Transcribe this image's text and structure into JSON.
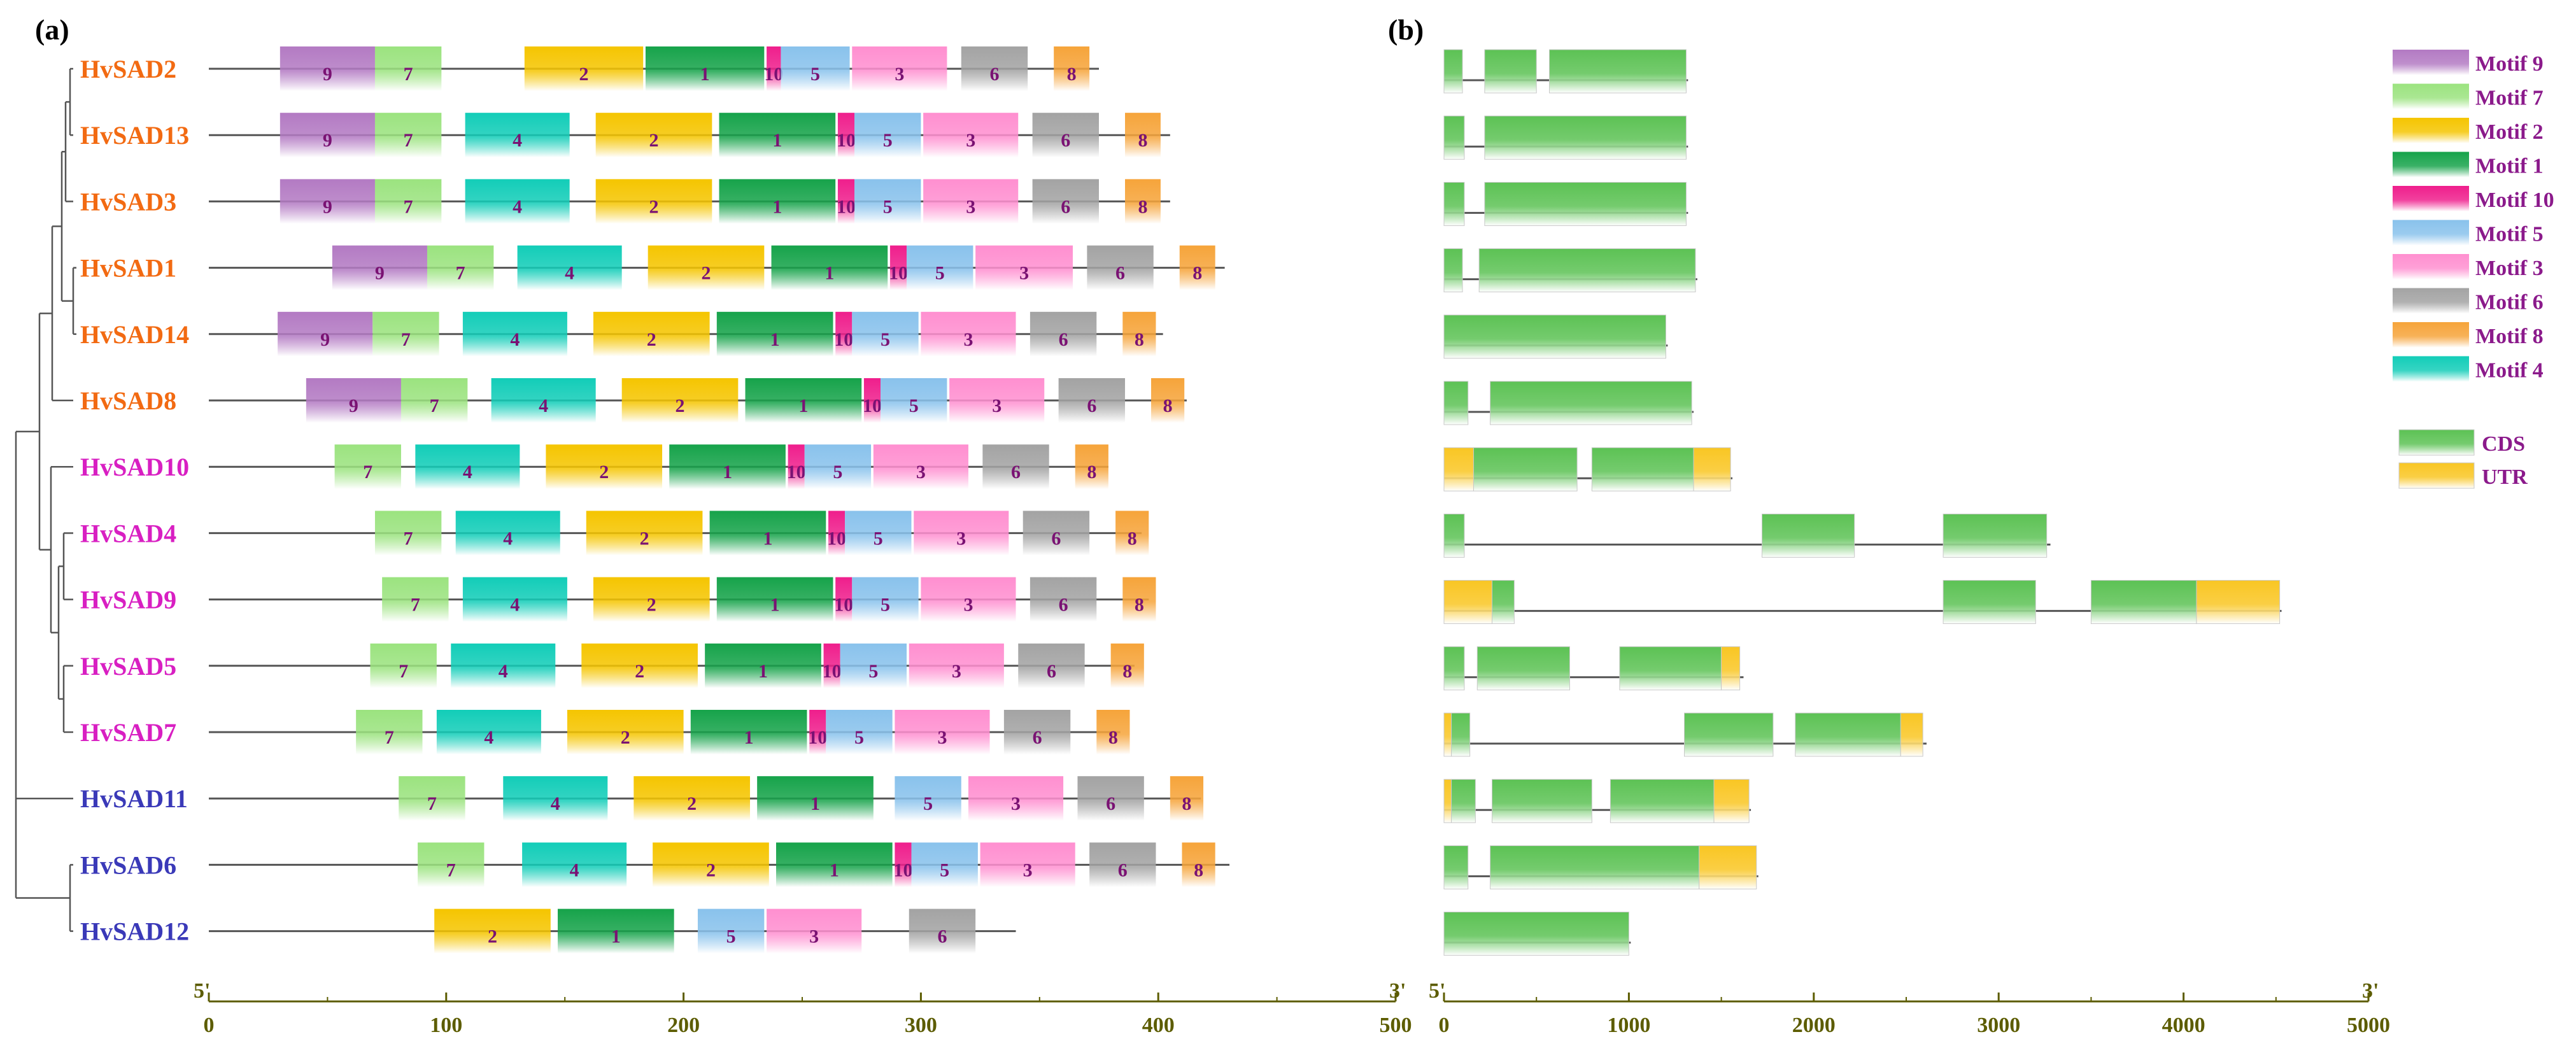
{
  "panel_a_label": "(a)",
  "panel_b_label": "(b)",
  "colors": {
    "motif_1": "#16a34a",
    "motif_2": "#f5c500",
    "motif_3": "#ff8fd0",
    "motif_4": "#12cdb8",
    "motif_5": "#89c2ec",
    "motif_6": "#a3a3a3",
    "motif_7": "#9be37f",
    "motif_8": "#f6a43a",
    "motif_9": "#b37ac3",
    "motif_10": "#ef1e8c",
    "cds": "#5cc254",
    "utr": "#f9c623",
    "clade_orange": "#f26a12",
    "clade_magenta": "#d81fc2",
    "clade_blue": "#3a39b8"
  },
  "genes": [
    {
      "name": "HvSAD2",
      "clade": "orange",
      "length": 375,
      "motifs": [
        [
          9,
          30,
          70
        ],
        [
          7,
          70,
          98
        ],
        [
          2,
          133,
          183
        ],
        [
          1,
          184,
          234
        ],
        [
          10,
          235,
          241
        ],
        [
          5,
          241,
          270
        ],
        [
          3,
          271,
          311
        ],
        [
          6,
          317,
          345
        ],
        [
          8,
          356,
          371
        ]
      ],
      "exons": [
        [
          0,
          100,
          "cds"
        ],
        [
          220,
          500,
          "cds"
        ],
        [
          570,
          1310,
          "cds"
        ]
      ],
      "gene_len": 1320
    },
    {
      "name": "HvSAD13",
      "clade": "orange",
      "length": 405,
      "motifs": [
        [
          9,
          30,
          70
        ],
        [
          7,
          70,
          98
        ],
        [
          4,
          108,
          152
        ],
        [
          2,
          163,
          212
        ],
        [
          1,
          215,
          264
        ],
        [
          10,
          265,
          272
        ],
        [
          5,
          272,
          300
        ],
        [
          3,
          301,
          341
        ],
        [
          6,
          347,
          375
        ],
        [
          8,
          386,
          401
        ]
      ],
      "exons": [
        [
          0,
          110,
          "cds"
        ],
        [
          220,
          1310,
          "cds"
        ]
      ],
      "gene_len": 1320
    },
    {
      "name": "HvSAD3",
      "clade": "orange",
      "length": 405,
      "motifs": [
        [
          9,
          30,
          70
        ],
        [
          7,
          70,
          98
        ],
        [
          4,
          108,
          152
        ],
        [
          2,
          163,
          212
        ],
        [
          1,
          215,
          264
        ],
        [
          10,
          265,
          272
        ],
        [
          5,
          272,
          300
        ],
        [
          3,
          301,
          341
        ],
        [
          6,
          347,
          375
        ],
        [
          8,
          386,
          401
        ]
      ],
      "exons": [
        [
          0,
          110,
          "cds"
        ],
        [
          220,
          1310,
          "cds"
        ]
      ],
      "gene_len": 1320
    },
    {
      "name": "HvSAD1",
      "clade": "orange",
      "length": 428,
      "motifs": [
        [
          9,
          52,
          92
        ],
        [
          7,
          92,
          120
        ],
        [
          4,
          130,
          174
        ],
        [
          2,
          185,
          234
        ],
        [
          1,
          237,
          286
        ],
        [
          10,
          287,
          294
        ],
        [
          5,
          294,
          322
        ],
        [
          3,
          323,
          364
        ],
        [
          6,
          370,
          398
        ],
        [
          8,
          409,
          424
        ]
      ],
      "exons": [
        [
          0,
          100,
          "cds"
        ],
        [
          190,
          1360,
          "cds"
        ]
      ],
      "gene_len": 1370
    },
    {
      "name": "HvSAD14",
      "clade": "orange",
      "length": 402,
      "motifs": [
        [
          9,
          29,
          69
        ],
        [
          7,
          69,
          97
        ],
        [
          4,
          107,
          151
        ],
        [
          2,
          162,
          211
        ],
        [
          1,
          214,
          263
        ],
        [
          10,
          264,
          271
        ],
        [
          5,
          271,
          299
        ],
        [
          3,
          300,
          340
        ],
        [
          6,
          346,
          374
        ],
        [
          8,
          385,
          399
        ]
      ],
      "exons": [
        [
          0,
          1200,
          "cds"
        ]
      ],
      "gene_len": 1210
    },
    {
      "name": "HvSAD8",
      "clade": "orange",
      "length": 412,
      "motifs": [
        [
          9,
          41,
          81
        ],
        [
          7,
          81,
          109
        ],
        [
          4,
          119,
          163
        ],
        [
          2,
          174,
          223
        ],
        [
          1,
          226,
          275
        ],
        [
          10,
          276,
          283
        ],
        [
          5,
          283,
          311
        ],
        [
          3,
          312,
          352
        ],
        [
          6,
          358,
          386
        ],
        [
          8,
          397,
          411
        ]
      ],
      "exons": [
        [
          0,
          130,
          "cds"
        ],
        [
          250,
          1340,
          "cds"
        ]
      ],
      "gene_len": 1350
    },
    {
      "name": "HvSAD10",
      "clade": "magenta",
      "length": 379,
      "motifs": [
        [
          7,
          53,
          81
        ],
        [
          4,
          87,
          131
        ],
        [
          2,
          142,
          191
        ],
        [
          1,
          194,
          243
        ],
        [
          10,
          244,
          251
        ],
        [
          5,
          251,
          279
        ],
        [
          3,
          280,
          320
        ],
        [
          6,
          326,
          354
        ],
        [
          8,
          365,
          379
        ]
      ],
      "exons": [
        [
          0,
          160,
          "utr"
        ],
        [
          160,
          720,
          "cds"
        ],
        [
          800,
          1350,
          "cds"
        ],
        [
          1350,
          1550,
          "utr"
        ]
      ],
      "gene_len": 1560
    },
    {
      "name": "HvSAD4",
      "clade": "magenta",
      "length": 393,
      "motifs": [
        [
          7,
          70,
          98
        ],
        [
          4,
          104,
          148
        ],
        [
          2,
          159,
          208
        ],
        [
          1,
          211,
          260
        ],
        [
          10,
          261,
          268
        ],
        [
          5,
          268,
          296
        ],
        [
          3,
          297,
          337
        ],
        [
          6,
          343,
          371
        ],
        [
          8,
          382,
          396
        ]
      ],
      "exons": [
        [
          0,
          110,
          "cds"
        ],
        [
          1720,
          2220,
          "cds"
        ],
        [
          2700,
          3260,
          "cds"
        ]
      ],
      "gene_len": 3280
    },
    {
      "name": "HvSAD9",
      "clade": "magenta",
      "length": 396,
      "motifs": [
        [
          7,
          73,
          101
        ],
        [
          4,
          107,
          151
        ],
        [
          2,
          162,
          211
        ],
        [
          1,
          214,
          263
        ],
        [
          10,
          264,
          271
        ],
        [
          5,
          271,
          299
        ],
        [
          3,
          300,
          340
        ],
        [
          6,
          346,
          374
        ],
        [
          8,
          385,
          399
        ]
      ],
      "exons": [
        [
          0,
          260,
          "utr"
        ],
        [
          260,
          380,
          "cds"
        ],
        [
          2700,
          3200,
          "cds"
        ],
        [
          3500,
          4070,
          "cds"
        ],
        [
          4070,
          4520,
          "utr"
        ]
      ],
      "gene_len": 4530
    },
    {
      "name": "HvSAD5",
      "clade": "magenta",
      "length": 390,
      "motifs": [
        [
          7,
          68,
          96
        ],
        [
          4,
          102,
          146
        ],
        [
          2,
          157,
          206
        ],
        [
          1,
          209,
          258
        ],
        [
          10,
          259,
          266
        ],
        [
          5,
          266,
          294
        ],
        [
          3,
          295,
          335
        ],
        [
          6,
          341,
          369
        ],
        [
          8,
          380,
          394
        ]
      ],
      "exons": [
        [
          0,
          110,
          "cds"
        ],
        [
          180,
          680,
          "cds"
        ],
        [
          950,
          1500,
          "cds"
        ],
        [
          1500,
          1600,
          "utr"
        ]
      ],
      "gene_len": 1620
    },
    {
      "name": "HvSAD7",
      "clade": "magenta",
      "length": 384,
      "motifs": [
        [
          7,
          62,
          90
        ],
        [
          4,
          96,
          140
        ],
        [
          2,
          151,
          200
        ],
        [
          1,
          203,
          252
        ],
        [
          10,
          253,
          260
        ],
        [
          5,
          260,
          288
        ],
        [
          3,
          289,
          329
        ],
        [
          6,
          335,
          363
        ],
        [
          8,
          374,
          388
        ]
      ],
      "exons": [
        [
          0,
          40,
          "utr"
        ],
        [
          40,
          140,
          "cds"
        ],
        [
          1300,
          1780,
          "cds"
        ],
        [
          1900,
          2470,
          "cds"
        ],
        [
          2470,
          2590,
          "utr"
        ]
      ],
      "gene_len": 2610
    },
    {
      "name": "HvSAD11",
      "clade": "blue",
      "length": 418,
      "motifs": [
        [
          7,
          80,
          108
        ],
        [
          4,
          124,
          168
        ],
        [
          2,
          179,
          228
        ],
        [
          1,
          231,
          280
        ],
        [
          5,
          289,
          317
        ],
        [
          3,
          320,
          360
        ],
        [
          6,
          366,
          394
        ],
        [
          8,
          405,
          419
        ]
      ],
      "exons": [
        [
          0,
          40,
          "utr"
        ],
        [
          40,
          170,
          "cds"
        ],
        [
          260,
          800,
          "cds"
        ],
        [
          900,
          1460,
          "cds"
        ],
        [
          1460,
          1650,
          "utr"
        ]
      ],
      "gene_len": 1660
    },
    {
      "name": "HvSAD6",
      "clade": "blue",
      "length": 430,
      "motifs": [
        [
          7,
          88,
          116
        ],
        [
          4,
          132,
          176
        ],
        [
          2,
          187,
          236
        ],
        [
          1,
          239,
          288
        ],
        [
          10,
          289,
          296
        ],
        [
          5,
          296,
          324
        ],
        [
          3,
          325,
          365
        ],
        [
          6,
          371,
          399
        ],
        [
          8,
          410,
          424
        ]
      ],
      "exons": [
        [
          0,
          130,
          "cds"
        ],
        [
          250,
          1380,
          "cds"
        ],
        [
          1380,
          1690,
          "utr"
        ]
      ],
      "gene_len": 1700
    },
    {
      "name": "HvSAD12",
      "clade": "blue",
      "length": 340,
      "motifs": [
        [
          2,
          95,
          144
        ],
        [
          1,
          147,
          196
        ],
        [
          5,
          206,
          234
        ],
        [
          3,
          235,
          275
        ],
        [
          6,
          295,
          323
        ]
      ],
      "exons": [
        [
          0,
          1000,
          "cds"
        ]
      ],
      "gene_len": 1010
    }
  ],
  "axis_a": {
    "start_label": "5'",
    "end_label": "3'",
    "ticks": [
      "0",
      "100",
      "200",
      "300",
      "400",
      "500"
    ],
    "range": [
      0,
      500
    ]
  },
  "axis_b": {
    "start_label": "5'",
    "end_label": "3'",
    "ticks": [
      "0",
      "1000",
      "2000",
      "3000",
      "4000",
      "5000"
    ],
    "range": [
      0,
      5000
    ]
  },
  "legend_motifs": [
    {
      "label": "Motif 9",
      "key": "motif_9"
    },
    {
      "label": "Motif 7",
      "key": "motif_7"
    },
    {
      "label": "Motif 2",
      "key": "motif_2"
    },
    {
      "label": "Motif 1",
      "key": "motif_1"
    },
    {
      "label": "Motif 10",
      "key": "motif_10"
    },
    {
      "label": "Motif 5",
      "key": "motif_5"
    },
    {
      "label": "Motif 3",
      "key": "motif_3"
    },
    {
      "label": "Motif 6",
      "key": "motif_6"
    },
    {
      "label": "Motif 8",
      "key": "motif_8"
    },
    {
      "label": "Motif 4",
      "key": "motif_4"
    }
  ],
  "legend_structure": [
    {
      "label": "CDS",
      "key": "cds"
    },
    {
      "label": "UTR",
      "key": "utr"
    }
  ]
}
